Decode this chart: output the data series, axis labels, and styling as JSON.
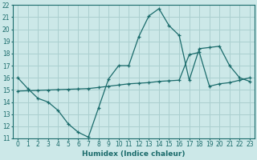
{
  "xlabel": "Humidex (Indice chaleur)",
  "bg_color": "#cce8e8",
  "grid_color": "#aacfcf",
  "line_color": "#1a6b6b",
  "xlim": [
    -0.5,
    23.5
  ],
  "ylim": [
    11,
    22
  ],
  "xticks": [
    0,
    1,
    2,
    3,
    4,
    5,
    6,
    7,
    8,
    9,
    10,
    11,
    12,
    13,
    14,
    15,
    16,
    17,
    18,
    19,
    20,
    21,
    22,
    23
  ],
  "yticks": [
    11,
    12,
    13,
    14,
    15,
    16,
    17,
    18,
    19,
    20,
    21,
    22
  ],
  "line1_x": [
    0,
    1,
    2,
    3,
    4,
    5,
    6,
    7,
    8,
    9,
    10,
    11,
    12,
    13,
    14,
    15,
    16,
    17,
    18,
    19,
    20,
    21,
    22,
    23
  ],
  "line1_y": [
    16.0,
    15.1,
    14.3,
    14.0,
    13.3,
    12.2,
    11.5,
    11.1,
    13.5,
    15.9,
    17.0,
    17.0,
    19.4,
    21.1,
    21.7,
    20.3,
    19.5,
    15.8,
    18.4,
    18.5,
    18.6,
    17.0,
    16.0,
    15.7
  ],
  "line2_x": [
    0,
    1,
    2,
    3,
    4,
    5,
    6,
    7,
    8,
    9,
    10,
    11,
    12,
    13,
    14,
    15,
    16,
    17,
    18,
    19,
    20,
    21,
    22,
    23
  ],
  "line2_y": [
    14.9,
    14.93,
    14.96,
    14.99,
    15.02,
    15.05,
    15.08,
    15.11,
    15.2,
    15.3,
    15.4,
    15.5,
    15.55,
    15.6,
    15.7,
    15.75,
    15.8,
    17.9,
    18.1,
    15.3,
    15.5,
    15.6,
    15.8,
    16.0
  ]
}
